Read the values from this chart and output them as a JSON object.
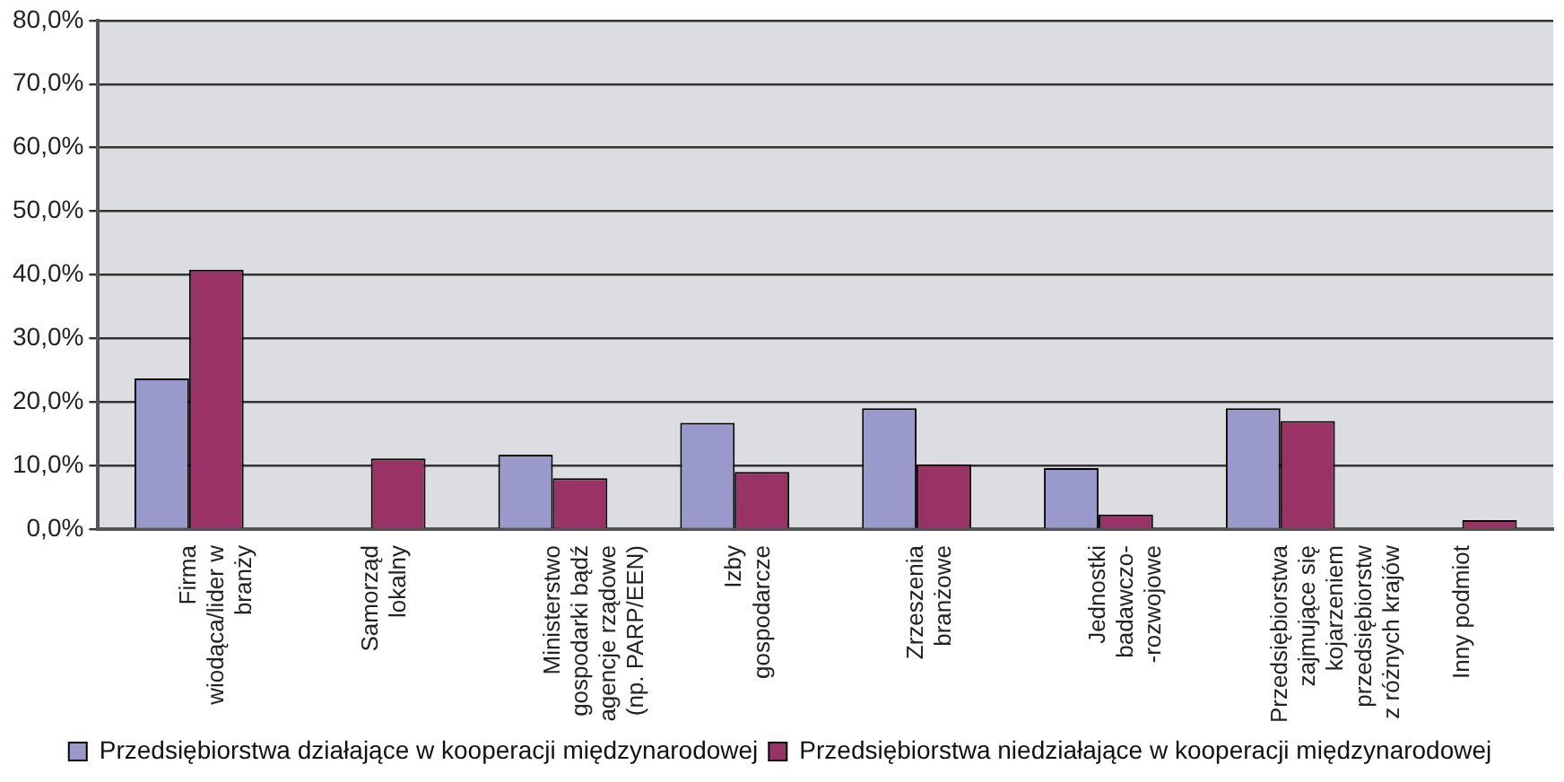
{
  "chart_data": {
    "type": "bar",
    "categories": [
      "Firma\nwiodąca/lider w\nbranży",
      "Samorząd\nlokalny",
      "Ministerstwo\ngospodarki bądź\nagencje rządowe\n(np. PARP/EEN)",
      "Izby\ngospodarcze",
      "Zrzeszenia\nbranżowe",
      "Jednostki\nbadawczo-\n-rozwojowe",
      "Przedsiębiorstwa\nzajmujące się\nkojarzeniem\nprzedsiębiorstw\nz różnych krajów",
      "Inny podmiot"
    ],
    "series": [
      {
        "name": "Przedsiębiorstwa działające w kooperacji międzynarodowej",
        "color": "#9999cc",
        "values": [
          23.7,
          0,
          11.7,
          16.7,
          19.0,
          9.6,
          19.0,
          0
        ]
      },
      {
        "name": "Przedsiębiorstwa niedziałające w kooperacji międzynarodowej",
        "color": "#993366",
        "values": [
          40.8,
          11.1,
          8.0,
          9.0,
          10.2,
          2.3,
          17.0,
          1.4
        ]
      }
    ],
    "ylim": [
      0,
      80
    ],
    "yticks": [
      {
        "value": 0,
        "label": "0,0%"
      },
      {
        "value": 10,
        "label": "10,0%"
      },
      {
        "value": 20,
        "label": "20,0%"
      },
      {
        "value": 30,
        "label": "30,0%"
      },
      {
        "value": 40,
        "label": "40,0%"
      },
      {
        "value": 50,
        "label": "50,0%"
      },
      {
        "value": 60,
        "label": "60,0%"
      },
      {
        "value": 70,
        "label": "70,0%"
      },
      {
        "value": 80,
        "label": "80,0%"
      }
    ],
    "grid": "y",
    "legend": "bottom"
  }
}
